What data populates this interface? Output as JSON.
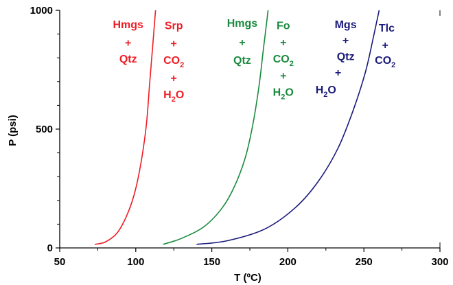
{
  "chart_data": {
    "type": "line",
    "title": "",
    "xlabel": "T (ºC)",
    "ylabel": "P (psi)",
    "xlim": [
      50,
      300
    ],
    "ylim": [
      0,
      1000
    ],
    "x_ticks": [
      "50",
      "100",
      "150",
      "200",
      "250",
      "300"
    ],
    "y_ticks": [
      "0",
      "500",
      "1000"
    ],
    "grid": false,
    "series": [
      {
        "color": "#ee1c24",
        "x": [
          73,
          80,
          88,
          95,
          100,
          104,
          107,
          109,
          111,
          113
        ],
        "y": [
          15,
          25,
          65,
          150,
          250,
          380,
          520,
          680,
          840,
          1000
        ]
      },
      {
        "color": "#1a8a3e",
        "x": [
          118,
          130,
          145,
          157,
          165,
          172,
          177,
          181,
          184,
          187
        ],
        "y": [
          15,
          40,
          90,
          170,
          260,
          380,
          520,
          680,
          840,
          1000
        ]
      },
      {
        "color": "#1a1a7a",
        "x": [
          140,
          160,
          185,
          205,
          220,
          233,
          243,
          251,
          256,
          260
        ],
        "y": [
          15,
          30,
          80,
          170,
          280,
          420,
          580,
          740,
          880,
          1000
        ]
      }
    ],
    "annotations": [
      {
        "color": "#ee1c24",
        "parts": [
          {
            "t": "Hmgs"
          }
        ],
        "x": 95,
        "y": 925
      },
      {
        "color": "#ee1c24",
        "parts": [
          {
            "t": "+"
          }
        ],
        "x": 95,
        "y": 848
      },
      {
        "color": "#ee1c24",
        "parts": [
          {
            "t": "Qtz"
          }
        ],
        "x": 95,
        "y": 780
      },
      {
        "color": "#ee1c24",
        "parts": [
          {
            "t": "Srp"
          }
        ],
        "x": 125,
        "y": 920
      },
      {
        "color": "#ee1c24",
        "parts": [
          {
            "t": "+"
          }
        ],
        "x": 125,
        "y": 845
      },
      {
        "color": "#ee1c24",
        "parts": [
          {
            "t": "CO"
          },
          {
            "t": "2",
            "sub": true
          }
        ],
        "x": 125,
        "y": 775
      },
      {
        "color": "#ee1c24",
        "parts": [
          {
            "t": "+"
          }
        ],
        "x": 125,
        "y": 700
      },
      {
        "color": "#ee1c24",
        "parts": [
          {
            "t": "H"
          },
          {
            "t": "2",
            "sub": true
          },
          {
            "t": "O"
          }
        ],
        "x": 125,
        "y": 630
      },
      {
        "color": "#1a8a3e",
        "parts": [
          {
            "t": "Hmgs"
          }
        ],
        "x": 170,
        "y": 930
      },
      {
        "color": "#1a8a3e",
        "parts": [
          {
            "t": "+"
          }
        ],
        "x": 170,
        "y": 850
      },
      {
        "color": "#1a8a3e",
        "parts": [
          {
            "t": "Qtz"
          }
        ],
        "x": 170,
        "y": 775
      },
      {
        "color": "#1a8a3e",
        "parts": [
          {
            "t": "Fo"
          }
        ],
        "x": 197,
        "y": 920
      },
      {
        "color": "#1a8a3e",
        "parts": [
          {
            "t": "+"
          }
        ],
        "x": 197,
        "y": 850
      },
      {
        "color": "#1a8a3e",
        "parts": [
          {
            "t": "CO"
          },
          {
            "t": "2",
            "sub": true
          }
        ],
        "x": 197,
        "y": 780
      },
      {
        "color": "#1a8a3e",
        "parts": [
          {
            "t": "+"
          }
        ],
        "x": 197,
        "y": 710
      },
      {
        "color": "#1a8a3e",
        "parts": [
          {
            "t": "H"
          },
          {
            "t": "2",
            "sub": true
          },
          {
            "t": "O"
          }
        ],
        "x": 197,
        "y": 640
      },
      {
        "color": "#1a1a7a",
        "parts": [
          {
            "t": "Mgs"
          }
        ],
        "x": 238,
        "y": 925
      },
      {
        "color": "#1a1a7a",
        "parts": [
          {
            "t": "+"
          }
        ],
        "x": 238,
        "y": 858
      },
      {
        "color": "#1a1a7a",
        "parts": [
          {
            "t": "Qtz"
          }
        ],
        "x": 238,
        "y": 790
      },
      {
        "color": "#1a1a7a",
        "parts": [
          {
            "t": "+"
          }
        ],
        "x": 233,
        "y": 722
      },
      {
        "color": "#1a1a7a",
        "parts": [
          {
            "t": "H"
          },
          {
            "t": "2",
            "sub": true
          },
          {
            "t": "O"
          }
        ],
        "x": 225,
        "y": 650
      },
      {
        "color": "#1a1a7a",
        "parts": [
          {
            "t": "Tlc"
          }
        ],
        "x": 265,
        "y": 910
      },
      {
        "color": "#1a1a7a",
        "parts": [
          {
            "t": "+"
          }
        ],
        "x": 264,
        "y": 838
      },
      {
        "color": "#1a1a7a",
        "parts": [
          {
            "t": "CO"
          },
          {
            "t": "2",
            "sub": true
          }
        ],
        "x": 264,
        "y": 775
      }
    ]
  }
}
